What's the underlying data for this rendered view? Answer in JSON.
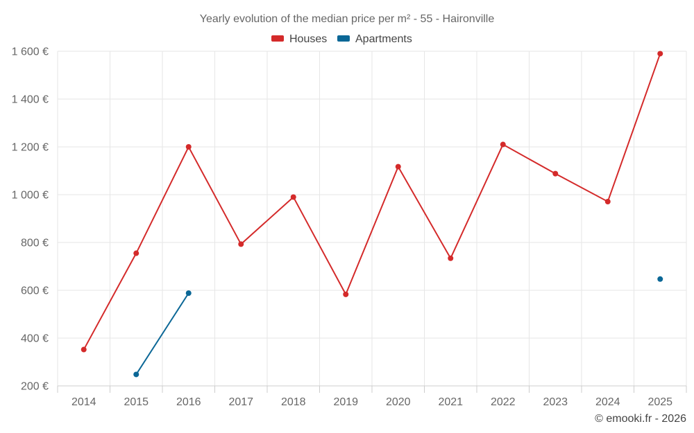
{
  "chart_data": {
    "type": "line",
    "title": "Yearly evolution of the median price per m² - 55 - Haironville",
    "categories": [
      "2014",
      "2015",
      "2016",
      "2017",
      "2018",
      "2019",
      "2020",
      "2021",
      "2022",
      "2023",
      "2024",
      "2025"
    ],
    "series": [
      {
        "name": "Houses",
        "color": "#d42a2a",
        "values": [
          352,
          755,
          1200,
          793,
          990,
          583,
          1117,
          734,
          1210,
          1088,
          971,
          1590
        ]
      },
      {
        "name": "Apartments",
        "color": "#0b6796",
        "values": [
          null,
          248,
          588,
          null,
          null,
          null,
          null,
          null,
          null,
          null,
          null,
          647
        ]
      }
    ],
    "ylim": [
      200,
      1600
    ],
    "yticks": [
      200,
      400,
      600,
      800,
      1000,
      1200,
      1400,
      1600
    ],
    "ytick_labels": [
      "200 €",
      "400 €",
      "600 €",
      "800 €",
      "1 000 €",
      "1 200 €",
      "1 400 €",
      "1 600 €"
    ],
    "grid": true,
    "legend_position": "top-center",
    "xlabel": "",
    "ylabel": ""
  },
  "credit": "© emooki.fr - 2026"
}
